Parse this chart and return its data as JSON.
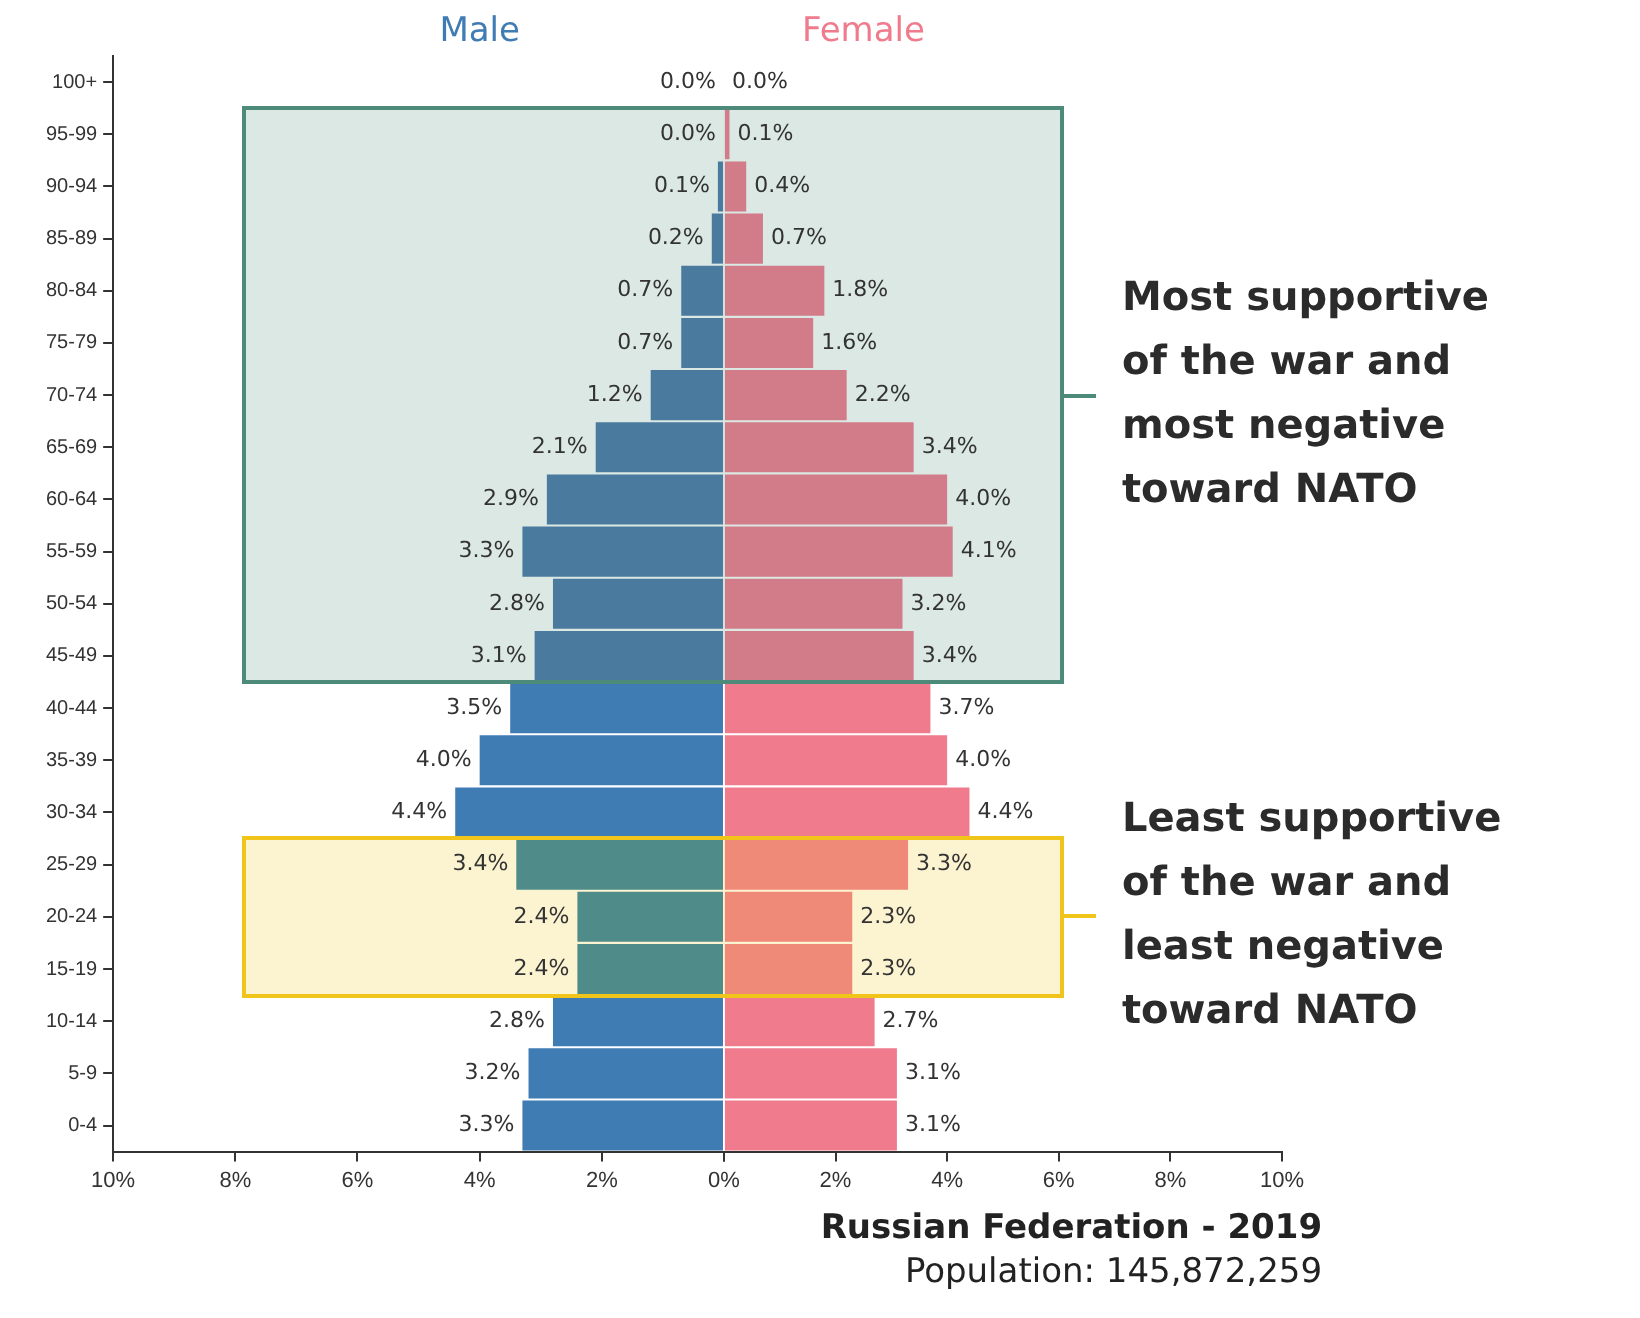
{
  "chart_data": [
    {
      "type": "bar",
      "orientation": "horizontal",
      "categories": [
        "100+",
        "95-99",
        "90-94",
        "85-89",
        "80-84",
        "75-79",
        "70-74",
        "65-69",
        "60-64",
        "55-59",
        "50-54",
        "45-49",
        "40-44",
        "35-39",
        "30-34",
        "25-29",
        "20-24",
        "15-19",
        "10-14",
        "5-9",
        "0-4"
      ],
      "series": [
        {
          "name": "Male",
          "values": [
            0.0,
            0.0,
            0.1,
            0.2,
            0.7,
            0.7,
            1.2,
            2.1,
            2.9,
            3.3,
            2.8,
            3.1,
            3.5,
            4.0,
            4.4,
            3.4,
            2.4,
            2.4,
            2.8,
            3.2,
            3.3
          ],
          "colors": [
            "#3f7cb4",
            "#4a7b9e",
            "#4a7b9e",
            "#4a7b9e",
            "#4a7b9e",
            "#4a7b9e",
            "#4a7b9e",
            "#4a7b9e",
            "#4a7b9e",
            "#4a7b9e",
            "#4a7b9e",
            "#4a7b9e",
            "#3f7cb4",
            "#3f7cb4",
            "#3f7cb4",
            "#4f8b88",
            "#4f8b88",
            "#4f8b88",
            "#3f7cb4",
            "#3f7cb4",
            "#3f7cb4"
          ],
          "value_labels": [
            "0.0%",
            "0.0%",
            "0.1%",
            "0.2%",
            "0.7%",
            "0.7%",
            "1.2%",
            "2.1%",
            "2.9%",
            "3.3%",
            "2.8%",
            "3.1%",
            "3.5%",
            "4.0%",
            "4.4%",
            "3.4%",
            "2.4%",
            "2.4%",
            "2.8%",
            "3.2%",
            "3.3%"
          ]
        }
      ],
      "xlim": [
        10,
        0
      ],
      "xticks": [
        {
          "value": 10,
          "label": "10%"
        },
        {
          "value": 8,
          "label": "8%"
        },
        {
          "value": 6,
          "label": "6%"
        },
        {
          "value": 4,
          "label": "4%"
        },
        {
          "value": 2,
          "label": "2%"
        },
        {
          "value": 0,
          "label": null
        }
      ],
      "bands": [
        {
          "axis": "y",
          "from": "95-99",
          "to": "45-49",
          "color": "#4d8a7a"
        },
        {
          "axis": "y",
          "from": "25-29",
          "to": "15-19",
          "color": "#f0c419"
        }
      ]
    },
    {
      "type": "bar",
      "orientation": "horizontal",
      "title": "Russian Federation - 2019",
      "subtitle": "Population: 145,872,259",
      "tick_labels": "x",
      "categories": [
        "100+",
        "95-99",
        "90-94",
        "85-89",
        "80-84",
        "75-79",
        "70-74",
        "65-69",
        "60-64",
        "55-59",
        "50-54",
        "45-49",
        "40-44",
        "35-39",
        "30-34",
        "25-29",
        "20-24",
        "15-19",
        "10-14",
        "5-9",
        "0-4"
      ],
      "series": [
        {
          "name": "Female",
          "values": [
            0.0,
            0.1,
            0.4,
            0.7,
            1.8,
            1.6,
            2.2,
            3.4,
            4.0,
            4.1,
            3.2,
            3.4,
            3.7,
            4.0,
            4.4,
            3.3,
            2.3,
            2.3,
            2.7,
            3.1,
            3.1
          ],
          "colors": [
            "#ef7b8c",
            "#d27c89",
            "#d27c89",
            "#d27c89",
            "#d27c89",
            "#d27c89",
            "#d27c89",
            "#d27c89",
            "#d27c89",
            "#d27c89",
            "#d27c89",
            "#d27c89",
            "#ef7b8c",
            "#ef7b8c",
            "#ef7b8c",
            "#ef8a78",
            "#ef8a78",
            "#ef8a78",
            "#ef7b8c",
            "#ef7b8c",
            "#ef7b8c"
          ],
          "value_labels": [
            "0.0%",
            "0.1%",
            "0.4%",
            "0.7%",
            "1.8%",
            "1.6%",
            "2.2%",
            "3.4%",
            "4.0%",
            "4.1%",
            "3.2%",
            "3.4%",
            "3.7%",
            "4.0%",
            "4.4%",
            "3.3%",
            "2.3%",
            "2.3%",
            "2.7%",
            "3.1%",
            "3.1%"
          ]
        }
      ],
      "xlim": [
        0,
        10
      ],
      "xticks": [
        {
          "value": 0,
          "label": "0%"
        },
        {
          "value": 2,
          "label": "2%"
        },
        {
          "value": 4,
          "label": "4%"
        },
        {
          "value": 6,
          "label": "6%"
        },
        {
          "value": 8,
          "label": "8%"
        },
        {
          "value": 10,
          "label": "10%"
        }
      ],
      "bands": [
        {
          "axis": "y",
          "from": "95-99",
          "to": "45-49",
          "label": "Most supportive of the war and most negative toward NATO",
          "color": "#4d8a7a"
        },
        {
          "axis": "y",
          "from": "25-29",
          "to": "15-19",
          "label": "Least supportive of the war and least negative toward NATO",
          "color": "#f0c419"
        }
      ]
    }
  ]
}
